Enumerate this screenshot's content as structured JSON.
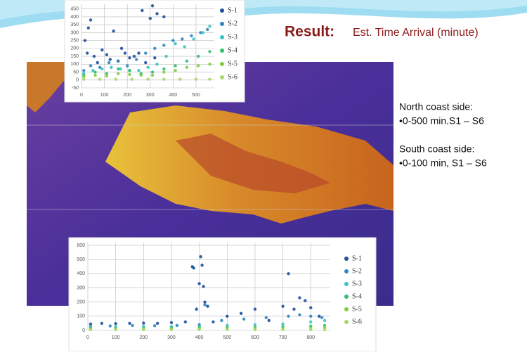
{
  "slide": {
    "title_bold": "Result:",
    "title_rest": "Est. Time Arrival (minute)",
    "notes": [
      "North coast side:",
      "•0-500 min.S1 – S6",
      "South coast side:",
      "•0-100 min, S1 – S6"
    ]
  },
  "chart_data": [
    {
      "type": "scatter",
      "grid": true,
      "xlim": [
        0,
        580
      ],
      "xticks": [
        0,
        100,
        200,
        300,
        400,
        500
      ],
      "ylim": [
        -50,
        480
      ],
      "yticks": [
        -50,
        0,
        50,
        100,
        150,
        200,
        250,
        300,
        350,
        400,
        450
      ],
      "series": [
        {
          "name": "S-1",
          "color": "#1f4f9e",
          "x": [
            15,
            25,
            30,
            40,
            55,
            70,
            90,
            110,
            125,
            140,
            160,
            175,
            190,
            210,
            230,
            250,
            265,
            280,
            300,
            310,
            320,
            330,
            360
          ],
          "values": [
            250,
            170,
            330,
            380,
            150,
            110,
            190,
            160,
            130,
            310,
            120,
            200,
            170,
            140,
            150,
            170,
            440,
            110,
            390,
            470,
            140,
            420,
            400
          ]
        },
        {
          "name": "S-2",
          "color": "#2e86c1",
          "x": [
            10,
            40,
            80,
            120,
            160,
            200,
            240,
            280,
            320,
            360,
            400,
            440,
            480,
            520,
            550
          ],
          "values": [
            60,
            90,
            80,
            110,
            120,
            90,
            130,
            170,
            200,
            220,
            250,
            260,
            280,
            300,
            320
          ]
        },
        {
          "name": "S-3",
          "color": "#38c3c3",
          "x": [
            10,
            50,
            90,
            130,
            170,
            210,
            250,
            290,
            330,
            370,
            410,
            450,
            490,
            530,
            560
          ],
          "values": [
            40,
            60,
            70,
            80,
            70,
            60,
            60,
            80,
            100,
            150,
            230,
            210,
            260,
            300,
            340
          ]
        },
        {
          "name": "S-4",
          "color": "#2fbf71",
          "x": [
            10,
            60,
            110,
            160,
            210,
            260,
            310,
            360,
            410,
            460,
            510,
            560
          ],
          "values": [
            30,
            50,
            40,
            70,
            60,
            40,
            50,
            70,
            90,
            120,
            150,
            180
          ]
        },
        {
          "name": "S-5",
          "color": "#7dcf3e",
          "x": [
            10,
            60,
            110,
            160,
            210,
            260,
            310,
            360,
            410,
            460,
            510,
            560
          ],
          "values": [
            20,
            30,
            25,
            40,
            35,
            30,
            30,
            50,
            60,
            80,
            90,
            100
          ]
        },
        {
          "name": "S-6",
          "color": "#a8d86a",
          "x": [
            10,
            80,
            150,
            220,
            290,
            360,
            430,
            500,
            560
          ],
          "values": [
            5,
            5,
            5,
            5,
            5,
            5,
            5,
            5,
            5
          ]
        }
      ]
    },
    {
      "type": "scatter",
      "grid": true,
      "xlim": [
        0,
        870
      ],
      "xticks": [
        0,
        100,
        200,
        300,
        400,
        500,
        600,
        700,
        800
      ],
      "ylim": [
        0,
        620
      ],
      "yticks": [
        0,
        100,
        200,
        300,
        400,
        500,
        600
      ],
      "series": [
        {
          "name": "S-1",
          "color": "#1f4f9e",
          "x": [
            10,
            50,
            100,
            150,
            200,
            250,
            300,
            350,
            375,
            380,
            390,
            400,
            405,
            410,
            415,
            420,
            430,
            450,
            500,
            550,
            600,
            650,
            700,
            720,
            740,
            760,
            780,
            800,
            830
          ],
          "values": [
            45,
            50,
            48,
            50,
            52,
            50,
            55,
            60,
            450,
            440,
            150,
            330,
            520,
            460,
            310,
            200,
            170,
            60,
            100,
            120,
            150,
            70,
            170,
            400,
            150,
            230,
            210,
            160,
            100
          ]
        },
        {
          "name": "S-2",
          "color": "#2e86c1",
          "x": [
            10,
            80,
            160,
            240,
            320,
            400,
            420,
            480,
            560,
            640,
            720,
            760,
            800,
            840
          ],
          "values": [
            30,
            32,
            35,
            33,
            35,
            40,
            180,
            70,
            80,
            90,
            100,
            110,
            100,
            90
          ]
        },
        {
          "name": "S-3",
          "color": "#38c3c3",
          "x": [
            10,
            100,
            200,
            300,
            400,
            500,
            600,
            700,
            800,
            850
          ],
          "values": [
            25,
            25,
            28,
            27,
            30,
            35,
            40,
            45,
            60,
            70
          ]
        },
        {
          "name": "S-4",
          "color": "#2fbf71",
          "x": [
            10,
            100,
            200,
            300,
            400,
            500,
            600,
            700,
            800,
            850
          ],
          "values": [
            15,
            15,
            15,
            18,
            20,
            20,
            22,
            25,
            30,
            35
          ]
        },
        {
          "name": "S-5",
          "color": "#7dcf3e",
          "x": [
            10,
            100,
            200,
            300,
            400,
            500,
            600,
            700,
            800,
            850
          ],
          "values": [
            10,
            10,
            12,
            12,
            14,
            14,
            15,
            16,
            18,
            20
          ]
        },
        {
          "name": "S-6",
          "color": "#a8d86a",
          "x": [
            10,
            100,
            200,
            300,
            400,
            500,
            600,
            700,
            800,
            850
          ],
          "values": [
            5,
            5,
            5,
            5,
            5,
            5,
            5,
            5,
            5,
            5
          ]
        }
      ]
    }
  ]
}
